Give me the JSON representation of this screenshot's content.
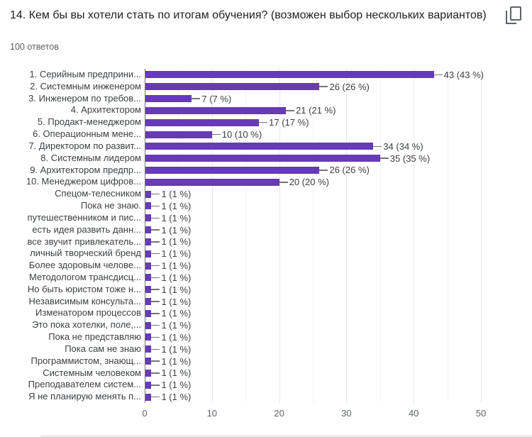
{
  "header": {
    "title": "14. Кем бы вы хотели стать по итогам обучения? (возможен выбор нескольких вариантов)",
    "responses_count": "100 ответов"
  },
  "colors": {
    "bar": "#673ab7",
    "axis_line": "#757575",
    "gridline_major": "#e8e8e8",
    "gridline_minor": "#f4f4f4",
    "leader_line": "#757575",
    "title_text": "#202124",
    "secondary_text": "#5f6368",
    "label_text": "#3c4043",
    "icon": "#5f6368"
  },
  "chart_data": {
    "type": "bar",
    "orientation": "horizontal",
    "title": "14. Кем бы вы хотели стать по итогам обучения? (возможен выбор нескольких вариантов)",
    "subtitle": "100 ответов",
    "categories": [
      "1. Серийным предприни...",
      "2. Системным инженером",
      "3. Инженером по требов...",
      "4. Архитектором",
      "5. Продакт-менеджером",
      "6. Операционным мене...",
      "7. Директором по развит...",
      "8. Системным лидером",
      "9. Архитектором предпр...",
      "10. Менеджером цифров...",
      "Спецом-телесником",
      "Пока не знаю.",
      "путешественником и пис...",
      "есть идея развить данн...",
      "все звучит привлекатель...",
      "личный творческий бренд",
      "Более здоровым челове...",
      "Методологом трансдисц...",
      "Но быть юристом тоже н...",
      "Независимым консульта...",
      "Изменатором процессов",
      "Это пока хотелки, поле,...",
      "Пока не представляю",
      "Пока сам не знаю",
      "Программистом, знающ...",
      "Системным человеком",
      "Преподавателем систем...",
      "Я не планирую менять п..."
    ],
    "values": [
      43,
      26,
      7,
      21,
      17,
      10,
      34,
      35,
      26,
      20,
      1,
      1,
      1,
      1,
      1,
      1,
      1,
      1,
      1,
      1,
      1,
      1,
      1,
      1,
      1,
      1,
      1,
      1
    ],
    "annotations": [
      "43 (43 %)",
      "26 (26 %)",
      "7 (7 %)",
      "21 (21 %)",
      "17 (17 %)",
      "10 (10 %)",
      "34 (34 %)",
      "35 (35 %)",
      "26 (26 %)",
      "20 (20 %)",
      "1 (1 %)",
      "1 (1 %)",
      "1 (1 %)",
      "1 (1 %)",
      "1 (1 %)",
      "1 (1 %)",
      "1 (1 %)",
      "1 (1 %)",
      "1 (1 %)",
      "1 (1 %)",
      "1 (1 %)",
      "1 (1 %)",
      "1 (1 %)",
      "1 (1 %)",
      "1 (1 %)",
      "1 (1 %)",
      "1 (1 %)",
      "1 (1 %)"
    ],
    "xlim": [
      0,
      50
    ],
    "x_ticks": [
      0,
      10,
      20,
      30,
      40,
      50
    ],
    "x_minor_ticks": [
      5,
      15,
      25,
      35,
      45
    ],
    "xlabel": "",
    "ylabel": "",
    "grid": true,
    "legend": "none",
    "bar_color": "#673ab7"
  }
}
